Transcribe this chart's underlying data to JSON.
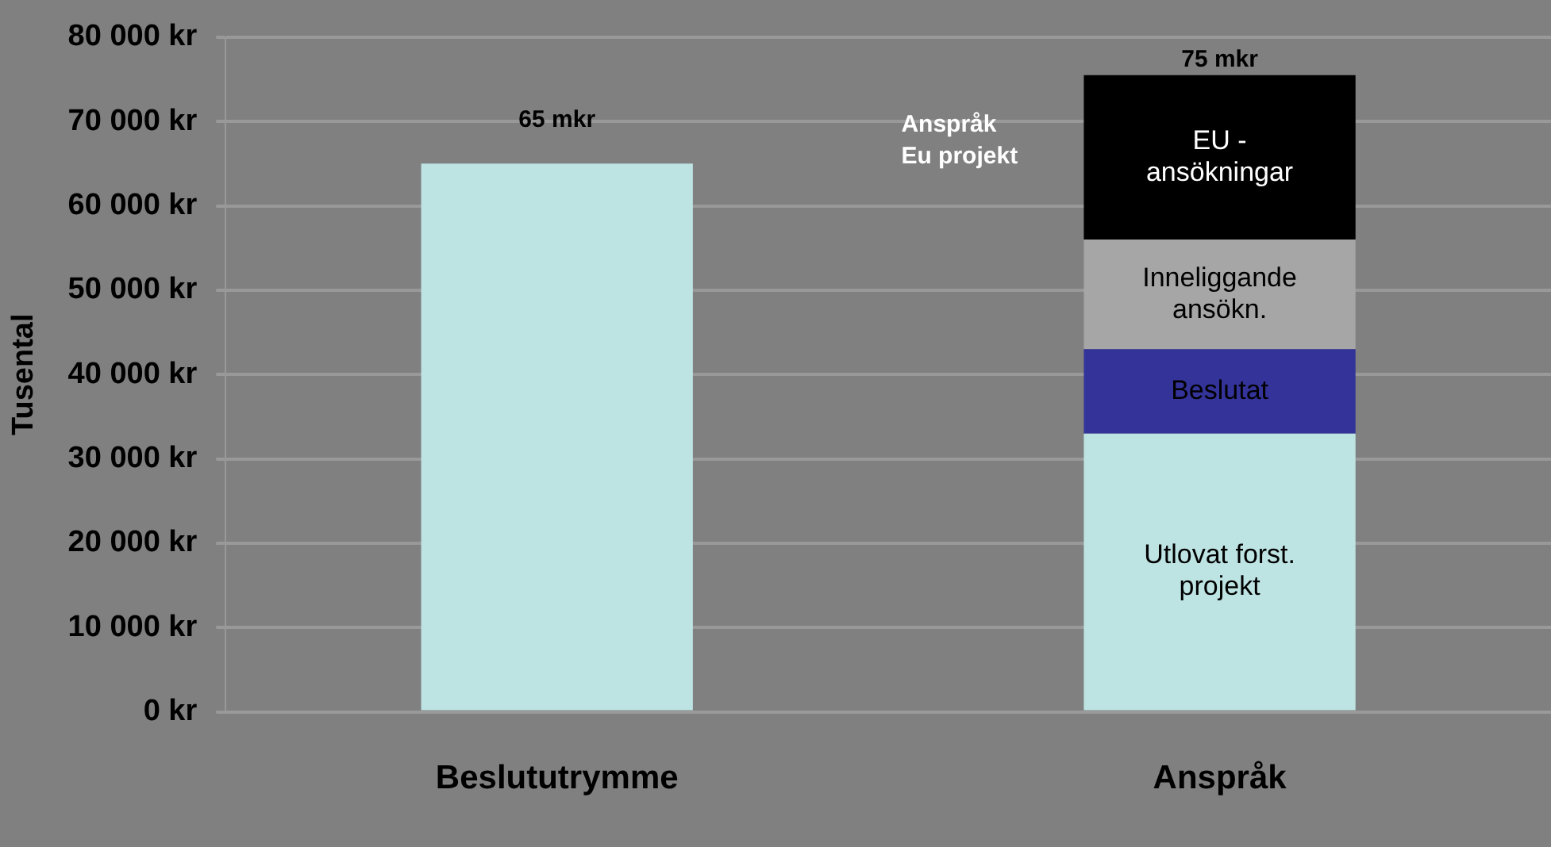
{
  "chart_data": {
    "type": "bar",
    "stacked": true,
    "ylabel": "Tusental",
    "categories": [
      "Beslututrymme",
      "Anspråk"
    ],
    "series": [
      {
        "color": "#bde3e3",
        "values": [
          65000,
          null
        ]
      },
      {
        "name": "Utlovat forst. projekt",
        "color": "#bde3e3",
        "values": [
          null,
          33000
        ]
      },
      {
        "name": "Beslutat",
        "color": "#333399",
        "values": [
          null,
          10000
        ]
      },
      {
        "name": "Inneliggande ansökn.",
        "color": "#a6a6a6",
        "values": [
          null,
          13000
        ]
      },
      {
        "name": "EU - ansökningar",
        "color": "#000000",
        "values": [
          null,
          19500
        ]
      }
    ],
    "ylim": [
      0,
      80000
    ],
    "yticks": [
      {
        "value": 0,
        "label": "0 kr"
      },
      {
        "value": 10000,
        "label": "10 000 kr"
      },
      {
        "value": 20000,
        "label": "20 000 kr"
      },
      {
        "value": 30000,
        "label": "30 000 kr"
      },
      {
        "value": 40000,
        "label": "40 000 kr"
      },
      {
        "value": 50000,
        "label": "50 000 kr"
      },
      {
        "value": 60000,
        "label": "60 000 kr"
      },
      {
        "value": 70000,
        "label": "70 000 kr"
      },
      {
        "value": 80000,
        "label": "80 000 kr"
      }
    ],
    "annotations": [
      {
        "text": "65 mkr",
        "x": "Beslututrymme",
        "y": 65000
      },
      {
        "text": "75 mkr",
        "x": "Anspråk",
        "y": 75500
      },
      "Anspråk\nEu projekt"
    ],
    "grid": "y",
    "legend": false
  }
}
